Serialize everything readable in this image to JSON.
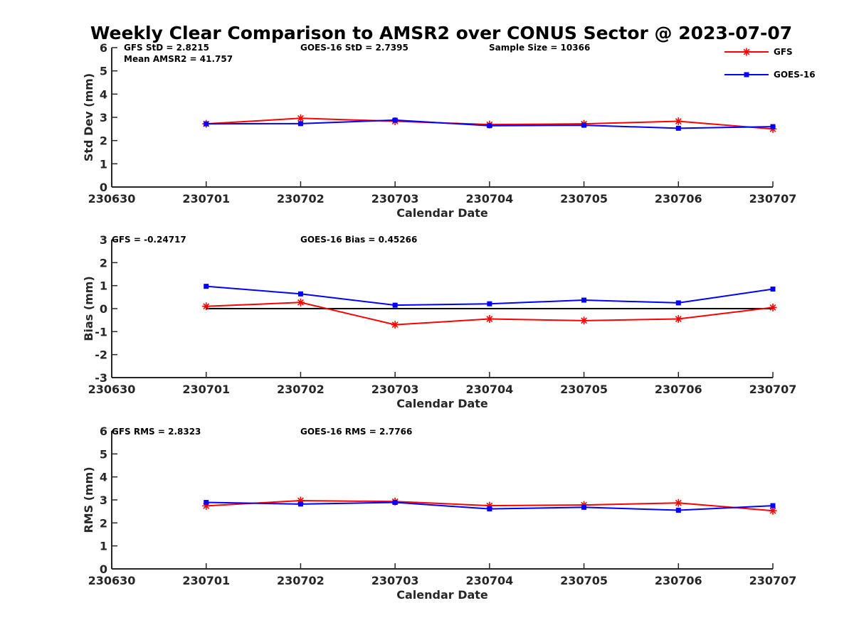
{
  "chart_data": {
    "title": "Weekly Clear Comparison to AMSR2 over CONUS Sector @ 2023-07-07",
    "legend": {
      "placement": "top-right",
      "entries": [
        {
          "name": "GFS",
          "color": "#ff0000",
          "marker": "asterisk"
        },
        {
          "name": "GOES-16",
          "color": "#0000ff",
          "marker": "square"
        }
      ]
    },
    "x_categories": [
      "230630",
      "230701",
      "230702",
      "230703",
      "230704",
      "230705",
      "230706",
      "230707"
    ],
    "panels": [
      {
        "type": "line",
        "ylabel": "Std Dev (mm)",
        "xlabel": "Calendar Date",
        "ylim": [
          0,
          6
        ],
        "yticks": [
          "0",
          "1",
          "2",
          "3",
          "4",
          "5",
          "6"
        ],
        "grid": false,
        "annotations": [
          "GFS StD = 2.8215",
          "GOES-16 StD = 2.7395",
          "Sample Size = 10366",
          "Mean AMSR2 = 41.757"
        ],
        "zero_line": false,
        "series": [
          {
            "name": "GFS",
            "color": "#ff0000",
            "marker": "asterisk",
            "x": [
              "230701",
              "230702",
              "230703",
              "230704",
              "230705",
              "230706",
              "230707"
            ],
            "values": [
              2.72,
              2.96,
              2.83,
              2.69,
              2.72,
              2.83,
              2.5
            ]
          },
          {
            "name": "GOES-16",
            "color": "#0000ff",
            "marker": "square",
            "x": [
              "230701",
              "230702",
              "230703",
              "230704",
              "230705",
              "230706",
              "230707"
            ],
            "values": [
              2.72,
              2.73,
              2.88,
              2.64,
              2.66,
              2.53,
              2.6
            ]
          }
        ]
      },
      {
        "type": "line",
        "ylabel": "Bias (mm)",
        "xlabel": "Calendar Date",
        "ylim": [
          -3,
          3
        ],
        "yticks": [
          "-3",
          "-2",
          "-1",
          "0",
          "1",
          "2",
          "3"
        ],
        "grid": false,
        "annotations": [
          "GFS = -0.24717",
          "GOES-16 Bias  = 0.45266"
        ],
        "zero_line": true,
        "series": [
          {
            "name": "GFS",
            "color": "#ff0000",
            "marker": "asterisk",
            "x": [
              "230701",
              "230702",
              "230703",
              "230704",
              "230705",
              "230706",
              "230707"
            ],
            "values": [
              0.1,
              0.27,
              -0.7,
              -0.45,
              -0.52,
              -0.45,
              0.05
            ]
          },
          {
            "name": "GOES-16",
            "color": "#0000ff",
            "marker": "square",
            "x": [
              "230701",
              "230702",
              "230703",
              "230704",
              "230705",
              "230706",
              "230707"
            ],
            "values": [
              0.97,
              0.64,
              0.15,
              0.21,
              0.37,
              0.25,
              0.85
            ]
          }
        ]
      },
      {
        "type": "line",
        "ylabel": "RMS (mm)",
        "xlabel": "Calendar Date",
        "ylim": [
          0,
          6
        ],
        "yticks": [
          "0",
          "1",
          "2",
          "3",
          "4",
          "5",
          "6"
        ],
        "grid": false,
        "annotations": [
          "GFS RMS = 2.8323",
          "GOES-16 RMS = 2.7766"
        ],
        "zero_line": false,
        "series": [
          {
            "name": "GFS",
            "color": "#ff0000",
            "marker": "asterisk",
            "x": [
              "230701",
              "230702",
              "230703",
              "230704",
              "230705",
              "230706",
              "230707"
            ],
            "values": [
              2.74,
              2.97,
              2.93,
              2.75,
              2.78,
              2.87,
              2.53
            ]
          },
          {
            "name": "GOES-16",
            "color": "#0000ff",
            "marker": "square",
            "x": [
              "230701",
              "230702",
              "230703",
              "230704",
              "230705",
              "230706",
              "230707"
            ],
            "values": [
              2.89,
              2.82,
              2.89,
              2.61,
              2.68,
              2.55,
              2.75
            ]
          }
        ]
      }
    ]
  }
}
